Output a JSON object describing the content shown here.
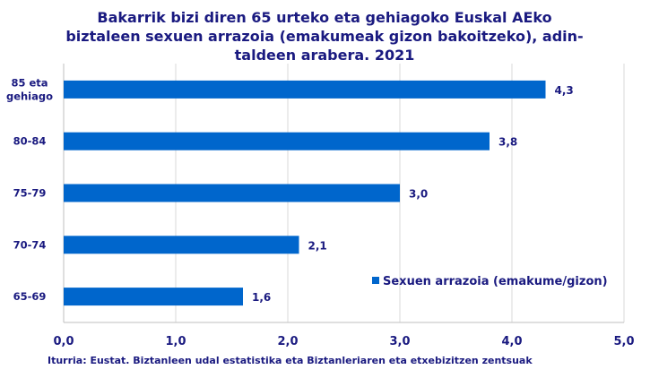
{
  "chart_data": {
    "type": "bar",
    "orientation": "horizontal",
    "title": "Bakarrik bizi diren 65 urteko eta gehiagoko Euskal AEko biztaleen sexuen arrazoia (emakumeak gizon bakoitzeko), adin-taldeen arabera. 2021",
    "title_lines": [
      "Bakarrik bizi diren 65 urteko eta gehiagoko Euskal AEko",
      "biztaleen sexuen arrazoia (emakumeak gizon bakoitzeko), adin-",
      "taldeen arabera. 2021"
    ],
    "categories": [
      "85 eta gehiago",
      "80-84",
      "75-79",
      "70-74",
      "65-69"
    ],
    "category_lines": [
      [
        "85 eta",
        "gehiago"
      ],
      [
        "80-84"
      ],
      [
        "75-79"
      ],
      [
        "70-74"
      ],
      [
        "65-69"
      ]
    ],
    "series": [
      {
        "name": "Sexuen arrazoia (emakume/gizon)",
        "values": [
          4.3,
          3.8,
          3.0,
          2.1,
          1.6
        ],
        "labels": [
          "4,3",
          "3,8",
          "3,0",
          "2,1",
          "1,6"
        ],
        "color": "#0066cc"
      }
    ],
    "xlim": [
      0,
      5
    ],
    "xticks": [
      0,
      1,
      2,
      3,
      4,
      5
    ],
    "xtick_labels": [
      "0,0",
      "1,0",
      "2,0",
      "3,0",
      "4,0",
      "5,0"
    ],
    "grid": true,
    "legend_position": "bottom-right",
    "xlabel": "",
    "ylabel": ""
  },
  "source": "Iturria: Eustat. Biztanleen udal estatistika eta Biztanleriaren eta etxebizitzen zentsuak"
}
